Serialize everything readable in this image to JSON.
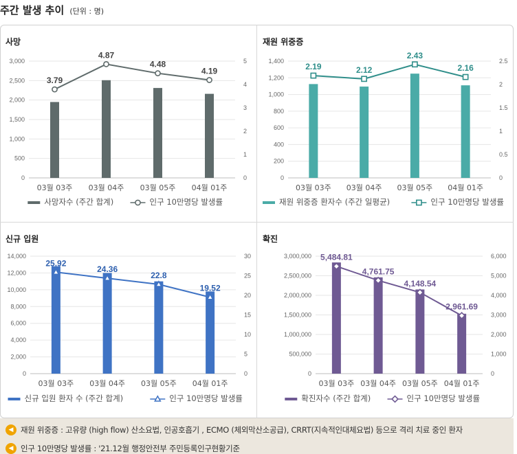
{
  "header": {
    "title": "주간 발생 추이",
    "unit": "(단위 : 명)"
  },
  "chart_data": [
    {
      "id": "deaths",
      "type": "bar+line",
      "title": "사망",
      "categories": [
        "03월 03주",
        "03월 04주",
        "03월 05주",
        "04월 01주"
      ],
      "bar_series": {
        "name": "사망자수 (주간 합계)",
        "values": [
          1950,
          2510,
          2310,
          2160
        ],
        "color": "#5f6b6b"
      },
      "line_series": {
        "name": "인구 10만명당 발생률",
        "values": [
          3.79,
          4.87,
          4.48,
          4.19
        ],
        "labels": [
          "3.79",
          "4.87",
          "4.48",
          "4.19"
        ],
        "color": "#5f6b6b",
        "marker": "circle"
      },
      "y_left": {
        "min": 0,
        "max": 3000,
        "step": 500,
        "ticks": [
          "0",
          "500",
          "1,000",
          "1,500",
          "2,000",
          "2,500",
          "3,000"
        ]
      },
      "y_right": {
        "min": 0,
        "max": 5,
        "step": 1,
        "ticks": [
          "0",
          "1",
          "2",
          "3",
          "4",
          "5"
        ]
      },
      "label_color": "#444444"
    },
    {
      "id": "severe",
      "type": "bar+line",
      "title": "재원 위중증",
      "categories": [
        "03월 03주",
        "03월 04주",
        "03월 05주",
        "04월 01주"
      ],
      "bar_series": {
        "name": "재원 위중증 환자수 (주간 일평균)",
        "values": [
          1125,
          1095,
          1250,
          1110
        ],
        "color": "#4aaba7"
      },
      "line_series": {
        "name": "인구 10만명당 발생률",
        "values": [
          2.19,
          2.12,
          2.43,
          2.16
        ],
        "labels": [
          "2.19",
          "2.12",
          "2.43",
          "2.16"
        ],
        "color": "#2f8e8a",
        "marker": "square"
      },
      "y_left": {
        "min": 0,
        "max": 1400,
        "step": 200,
        "ticks": [
          "0",
          "200",
          "400",
          "600",
          "800",
          "1,000",
          "1,200",
          "1,400"
        ]
      },
      "y_right": {
        "min": 0,
        "max": 2.5,
        "step": 0.5,
        "ticks": [
          "0",
          "0.5",
          "1",
          "1.5",
          "2",
          "2.5"
        ]
      },
      "label_color": "#2f8e8a"
    },
    {
      "id": "admissions",
      "type": "bar+line",
      "title": "신규 입원",
      "categories": [
        "03월 03주",
        "03월 04주",
        "03월 05주",
        "04월 01주"
      ],
      "bar_series": {
        "name": "신규 입원 환자 수 (주간 합계)",
        "values": [
          12800,
          12000,
          11000,
          9800
        ],
        "color": "#3f73c4"
      },
      "line_series": {
        "name": "인구 10만명당 발생률",
        "values": [
          25.92,
          24.36,
          22.8,
          19.52
        ],
        "labels": [
          "25.92",
          "24.36",
          "22.8",
          "19.52"
        ],
        "color": "#3f73c4",
        "marker": "triangle"
      },
      "y_left": {
        "min": 0,
        "max": 14000,
        "step": 2000,
        "ticks": [
          "0",
          "2,000",
          "4,000",
          "6,000",
          "8,000",
          "10,000",
          "12,000",
          "14,000"
        ]
      },
      "y_right": {
        "min": 0,
        "max": 30,
        "step": 5,
        "ticks": [
          "0",
          "5",
          "10",
          "15",
          "20",
          "25",
          "30"
        ]
      },
      "label_color": "#2d5fae"
    },
    {
      "id": "confirmed",
      "type": "bar+line",
      "title": "확진",
      "categories": [
        "03월 03주",
        "03월 04주",
        "03월 05주",
        "04월 01주"
      ],
      "bar_series": {
        "name": "확진자수 (주간 합계)",
        "values": [
          2840000,
          2460000,
          2150000,
          1530000
        ],
        "color": "#6f5a93"
      },
      "line_series": {
        "name": "인구 10만명당 발생률",
        "values": [
          5484.81,
          4761.75,
          4148.54,
          2961.69
        ],
        "labels": [
          "5,484.81",
          "4,761.75",
          "4,148.54",
          "2,961.69"
        ],
        "color": "#6f5a93",
        "marker": "diamond"
      },
      "y_left": {
        "min": 0,
        "max": 3000000,
        "step": 500000,
        "ticks": [
          "0",
          "500,000",
          "1,000,000",
          "1,500,000",
          "2,000,000",
          "2,500,000",
          "3,000,000"
        ]
      },
      "y_right": {
        "min": 0,
        "max": 6000,
        "step": 1000,
        "ticks": [
          "0",
          "1,000",
          "2,000",
          "3,000",
          "4,000",
          "5,000",
          "6,000"
        ]
      },
      "label_color": "#6f5a93"
    }
  ],
  "notes": [
    {
      "icon": "speaker-icon",
      "text": "재원 위중증 : 고유량 (high flow) 산소요법, 인공호흡기 , ECMO (체외막산소공급), CRRT(지속적인대체요법) 등으로 격리 치료 중인 환자"
    },
    {
      "icon": "speaker-icon",
      "text": "인구 10만명당 발생률 : '21.12월 행정안전부 주민등록인구현황기준"
    }
  ]
}
